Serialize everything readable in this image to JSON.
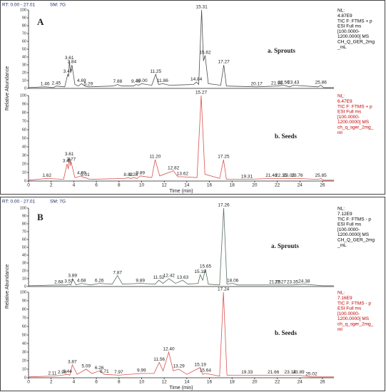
{
  "chart_data": [
    {
      "type": "line",
      "panel_label": "A",
      "header": [
        "RT: 0.00 - 27.01",
        "SM: 7G"
      ],
      "title": "a. Sprouts",
      "y_label": "Relative Abundance",
      "info": [
        "NL:",
        "4.87E9",
        "TIC F: FTMS + p",
        "ESI Full ms",
        "[100.0000-",
        "1200.0000]  MS",
        "CH_Q_GER_2mg",
        "_mL"
      ],
      "color": "#4d4d4d",
      "info_color": "#000000",
      "xlim": [
        0,
        27.01
      ],
      "ylim": [
        0,
        100
      ],
      "yticks": [
        0,
        10,
        20,
        30,
        40,
        50,
        60,
        70,
        80,
        90,
        100
      ],
      "x": [
        0,
        1.46,
        2.2,
        2.45,
        3.2,
        3.47,
        3.55,
        3.61,
        3.72,
        3.84,
        4.1,
        4.4,
        4.69,
        5.0,
        5.29,
        7.5,
        7.88,
        8.2,
        9.3,
        9.49,
        9.75,
        10.0,
        10.9,
        11.25,
        11.5,
        11.86,
        12.5,
        14.6,
        14.84,
        15.05,
        15.31,
        15.47,
        15.62,
        15.9,
        17.0,
        17.27,
        17.5,
        20.17,
        21.96,
        22.56,
        23.1,
        23.43,
        25.6,
        25.86,
        26.1,
        27.01
      ],
      "values": [
        1,
        2,
        1,
        3,
        2,
        18,
        15,
        35,
        20,
        30,
        5,
        3,
        6,
        3,
        2,
        3,
        5,
        3,
        3,
        5,
        4,
        6,
        4,
        18,
        5,
        6,
        4,
        5,
        8,
        5,
        100,
        35,
        42,
        6,
        4,
        30,
        3,
        2,
        3,
        4,
        2,
        4,
        2,
        4,
        1,
        1
      ],
      "labels": [
        null,
        "1.46",
        null,
        "2.45",
        null,
        "3.47",
        null,
        "3.61",
        null,
        "3.84",
        null,
        null,
        "4.69",
        null,
        "5.29",
        null,
        "7.88",
        null,
        null,
        "9.49",
        null,
        "10.00",
        null,
        "11.25",
        null,
        "11.86",
        null,
        null,
        "14.84",
        null,
        "15.31",
        null,
        "15.62",
        null,
        null,
        "17.27",
        null,
        "20.17",
        "21.96",
        "22.56",
        null,
        "23.43",
        null,
        "25.86",
        null,
        null
      ]
    },
    {
      "type": "line",
      "title": "b. Seeds",
      "x_label": "Time (min)",
      "info": [
        "NL:",
        "6.47E9",
        "TIC F: FTMS + p",
        "ESI Full ms",
        "[100.0000-",
        "1200.0000]  MS",
        "ch_q_sger_2mg_",
        "ml"
      ],
      "color": "#d9534f",
      "info_color": "#c00000",
      "xlim": [
        0,
        27.01
      ],
      "ylim": [
        0,
        100
      ],
      "yticks": [
        0,
        10,
        20,
        30,
        40,
        50,
        60,
        70,
        80,
        90,
        100
      ],
      "xticks": [
        0,
        2,
        4,
        6,
        8,
        10,
        12,
        14,
        16,
        18,
        20,
        22,
        24,
        26
      ],
      "x": [
        0,
        1.62,
        3.1,
        3.41,
        3.52,
        3.61,
        3.69,
        3.77,
        4.1,
        4.69,
        4.85,
        5.01,
        5.4,
        8.5,
        8.82,
        9.05,
        9.28,
        9.6,
        9.89,
        10.9,
        11.2,
        11.6,
        12.82,
        13.2,
        13.62,
        14.9,
        15.27,
        15.6,
        16.9,
        17.25,
        17.5,
        19.31,
        21.48,
        22.35,
        23.03,
        23.76,
        25.6,
        25.85,
        26.1,
        27.01
      ],
      "values": [
        1,
        3,
        2,
        20,
        14,
        28,
        18,
        22,
        4,
        6,
        4,
        4,
        2,
        3,
        4,
        3,
        4,
        3,
        6,
        4,
        25,
        6,
        12,
        5,
        5,
        4,
        100,
        8,
        3,
        25,
        2,
        2,
        3,
        3,
        3,
        3,
        2,
        3,
        1,
        1
      ],
      "labels": [
        null,
        "1.62",
        null,
        "3.41",
        null,
        "3.61",
        null,
        "3.77",
        null,
        "4.69",
        null,
        "5.01",
        null,
        null,
        "8.82",
        null,
        "9.28",
        null,
        "9.89",
        null,
        "11.20",
        null,
        "12.82",
        null,
        "13.62",
        null,
        "15.27",
        null,
        null,
        "17.25",
        null,
        "19.31",
        "21.48",
        "22.35",
        "23.03",
        "23.76",
        null,
        "25.85",
        null,
        null
      ]
    },
    {
      "type": "line",
      "panel_label": "B",
      "header": [
        "RT: 0.00 - 27.01",
        "SM: 7G"
      ],
      "title": "a. Sprouts",
      "y_label": "Relative Abundance",
      "info": [
        "NL:",
        "7.12E9",
        "TIC F: FTMS - p",
        "ESI Full ms",
        "[100.0000-",
        "1200.0000]  MS",
        "CH_Q_GER_2mg",
        "_mL"
      ],
      "color": "#5a7060",
      "info_color": "#000000",
      "xlim": [
        0,
        27.01
      ],
      "ylim": [
        0,
        100
      ],
      "yticks": [
        0,
        10,
        20,
        30,
        40,
        50,
        60,
        70,
        80,
        90,
        100
      ],
      "x": [
        0,
        2.68,
        3.4,
        3.57,
        3.75,
        3.89,
        4.2,
        4.68,
        5.5,
        6.26,
        7.4,
        7.87,
        8.3,
        9.89,
        11.2,
        11.52,
        11.9,
        12.42,
        13.0,
        13.63,
        14.1,
        15.0,
        15.18,
        15.4,
        15.65,
        15.9,
        16.9,
        17.26,
        17.55,
        18.06,
        18.5,
        21.79,
        22.27,
        23.35,
        24.38,
        26,
        27.01
      ],
      "values": [
        1,
        2,
        2,
        3,
        2,
        10,
        2,
        4,
        2,
        4,
        3,
        14,
        3,
        4,
        3,
        8,
        4,
        10,
        4,
        8,
        3,
        4,
        15,
        8,
        22,
        3,
        2,
        100,
        3,
        4,
        2,
        2,
        2,
        2,
        3,
        1,
        1
      ],
      "labels": [
        null,
        "2.68",
        null,
        "3.57",
        null,
        "3.89",
        null,
        "4.68",
        null,
        "6.26",
        null,
        "7.87",
        null,
        "9.89",
        null,
        "11.52",
        null,
        "12.42",
        null,
        "13.63",
        null,
        null,
        "15.18",
        null,
        "15.65",
        null,
        null,
        "17.26",
        null,
        "18.06",
        null,
        "21.79",
        "22.27",
        "23.35",
        "24.38",
        null,
        null
      ]
    },
    {
      "type": "line",
      "title": "b. Seeds",
      "x_label": "Time (min)",
      "info": [
        "NL:",
        "7.16E9",
        "TIC F: FTMS - p",
        "ESI Full ms",
        "[100.0000-",
        "1200.0000]  MS",
        "ch_q_sger_2mg_",
        "ml"
      ],
      "color": "#d9534f",
      "info_color": "#c00000",
      "xlim": [
        0,
        27.01
      ],
      "ylim": [
        0,
        100
      ],
      "yticks": [
        0,
        10,
        20,
        30,
        40,
        50,
        60,
        70,
        80,
        90,
        100
      ],
      "xticks": [
        0,
        2,
        4,
        6,
        8,
        10,
        12,
        14,
        16,
        18,
        20,
        22,
        24,
        26
      ],
      "x": [
        0,
        2.11,
        2.98,
        3.44,
        3.65,
        3.87,
        4.3,
        5.09,
        5.6,
        6.26,
        6.71,
        7.97,
        9.99,
        11.1,
        11.56,
        11.9,
        12.4,
        12.8,
        13.29,
        14.0,
        15.19,
        15.4,
        15.64,
        16.9,
        17.24,
        17.55,
        19.33,
        21.66,
        23.14,
        23.89,
        25.02,
        27.01
      ],
      "values": [
        1,
        2,
        3,
        4,
        3,
        15,
        4,
        10,
        5,
        8,
        4,
        3,
        5,
        5,
        18,
        8,
        30,
        8,
        10,
        4,
        12,
        4,
        5,
        2,
        100,
        3,
        3,
        3,
        3,
        3,
        1,
        1
      ],
      "labels": [
        null,
        "2.11",
        "2.98",
        "3.44",
        null,
        "3.87",
        null,
        "5.09",
        null,
        "6.26",
        "6.71",
        "7.97",
        "9.99",
        null,
        "11.56",
        null,
        "12.40",
        null,
        "13.29",
        null,
        "15.19",
        null,
        "15.64",
        null,
        "17.24",
        null,
        "19.33",
        "21.66",
        "23.14",
        "23.89",
        "25.02",
        null
      ]
    }
  ]
}
